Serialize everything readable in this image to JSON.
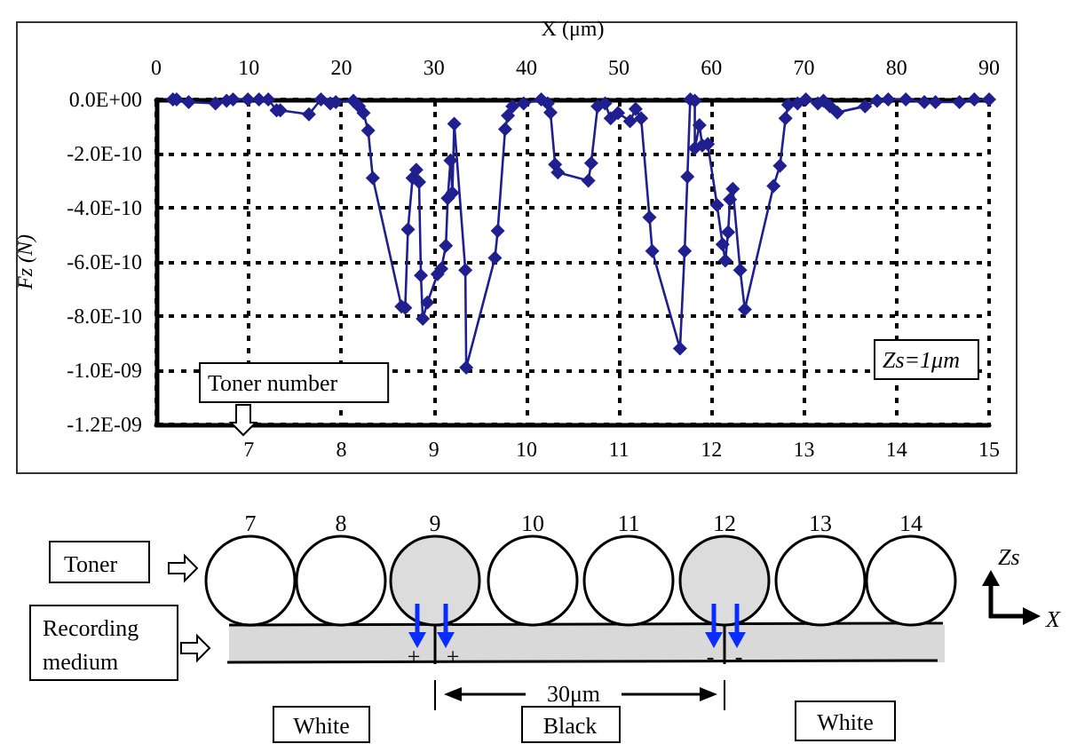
{
  "chart_data": {
    "type": "line",
    "ylabel": "Fz (N)",
    "x2label": "X (μm)",
    "xlabel": "Toner number",
    "xlim": [
      6,
      15
    ],
    "xticks": [
      7,
      8,
      9,
      10,
      11,
      12,
      13,
      14,
      15
    ],
    "x2lim": [
      0,
      90
    ],
    "x2ticks": [
      0,
      10,
      20,
      30,
      40,
      50,
      60,
      70,
      80,
      90
    ],
    "ylim": [
      -1.2e-09,
      0
    ],
    "yticks": [
      {
        "value": -1.2e-09,
        "label": "-1.2E-09"
      },
      {
        "value": -1e-09,
        "label": "-1.0E-09"
      },
      {
        "value": -8e-10,
        "label": "-8.0E-10"
      },
      {
        "value": -6e-10,
        "label": "-6.0E-10"
      },
      {
        "value": -4e-10,
        "label": "-4.0E-10"
      },
      {
        "value": -2e-10,
        "label": "-2.0E-10"
      },
      {
        "value": 0,
        "label": "0.0E+00"
      }
    ],
    "grid": true,
    "marker": "diamond",
    "line_style": "solid",
    "series": [
      {
        "color": "#1f1f8f",
        "axis": "x2",
        "x": [
          1.8,
          2.2,
          3.5,
          6.4,
          7.6,
          8.3,
          9.9,
          11.1,
          12.1,
          13.0,
          13.4,
          16.5,
          17.8,
          18.8,
          19.4,
          21.3,
          21.9,
          22.4,
          22.9,
          23.4,
          26.5,
          26.9,
          27.2,
          27.7,
          28.1,
          28.4,
          28.6,
          28.8,
          29.3,
          30.4,
          30.8,
          31.3,
          31.5,
          31.8,
          32.0,
          32.2,
          33.4,
          33.5,
          36.6,
          36.9,
          37.7,
          38.0,
          38.5,
          39.7,
          41.6,
          42.3,
          42.6,
          43.1,
          43.4,
          46.7,
          47.0,
          47.7,
          48.5,
          49.1,
          49.9,
          51.2,
          51.8,
          52.4,
          53.3,
          53.6,
          56.6,
          57.1,
          57.4,
          57.7,
          58.2,
          58.2,
          58.7,
          59.0,
          59.6,
          60.6,
          61.2,
          61.5,
          61.8,
          62.0,
          62.3,
          63.1,
          63.6,
          66.7,
          67.4,
          68.0,
          68.3,
          69.3,
          70.2,
          71.5,
          72.1,
          72.8,
          73.6,
          76.6,
          77.9,
          79.1,
          81.0,
          83.0,
          84.2,
          86.8,
          88.4,
          90.0
        ],
        "values": [
          0,
          0,
          -1e-11,
          -1.5e-11,
          -5e-12,
          0,
          0,
          0,
          0,
          -4e-11,
          -4e-11,
          -5.5e-11,
          0,
          -1.5e-11,
          -1e-11,
          -5e-12,
          -2.5e-11,
          -5e-11,
          -1.15e-10,
          -2.9e-10,
          -7.65e-10,
          -7.7e-10,
          -4.8e-10,
          -2.9e-10,
          -2.6e-10,
          -3.05e-10,
          -6.5e-10,
          -8.1e-10,
          -7.5e-10,
          -6.45e-10,
          -6.25e-10,
          -5.4e-10,
          -3.65e-10,
          -2.25e-10,
          -3.45e-10,
          -9e-11,
          -6.3e-10,
          -9.9e-10,
          -5.85e-10,
          -4.85e-10,
          -1.1e-10,
          -6e-11,
          -2.5e-11,
          -1.5e-11,
          0,
          -1.5e-11,
          -4.8e-11,
          -2.4e-10,
          -2.7e-10,
          -3e-10,
          -2.35e-10,
          -2.5e-11,
          -1.5e-11,
          -7e-11,
          -5e-11,
          -8e-11,
          -3.5e-11,
          -7e-11,
          -4.35e-10,
          -5.6e-10,
          -9.2e-10,
          -5.6e-10,
          -2.85e-10,
          0,
          -5e-12,
          -1.8e-10,
          -9.5e-11,
          -1.7e-10,
          -1.65e-10,
          -3.9e-10,
          -5.35e-10,
          -5.95e-10,
          -4.9e-10,
          -3.7e-10,
          -3.3e-10,
          -6.3e-10,
          -7.75e-10,
          -3.2e-10,
          -2.45e-10,
          -7e-11,
          -2e-11,
          -1.5e-11,
          0,
          -1.5e-11,
          -5e-12,
          -2.5e-11,
          -4.8e-11,
          -2.5e-11,
          -5e-12,
          0,
          0,
          -1e-11,
          -1e-11,
          -1e-11,
          0,
          0
        ]
      }
    ],
    "annotations": [
      "Zs=1μm",
      "Toner",
      "Recording medium",
      "7",
      "8",
      "9",
      "10",
      "11",
      "12",
      "13",
      "14",
      "+",
      "+",
      "-",
      "-",
      "30μm",
      "White",
      "Black",
      "White",
      "Zs",
      "X"
    ]
  }
}
